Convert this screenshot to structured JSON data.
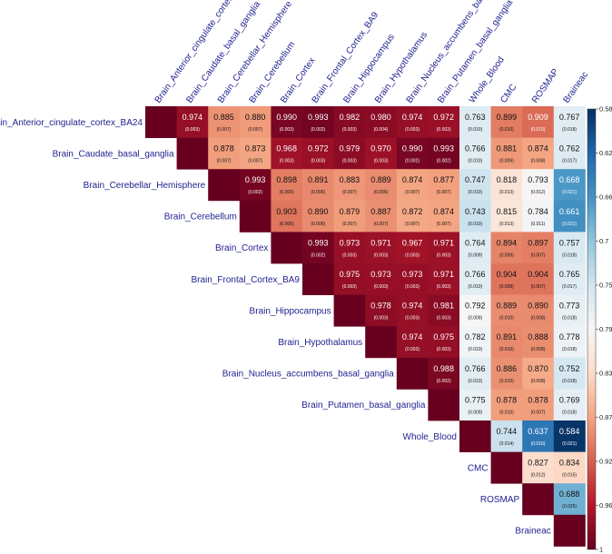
{
  "chart_data": {
    "type": "heatmap",
    "variables": [
      "Brain_Anterior_cingulate_cortex_BA24",
      "Brain_Caudate_basal_ganglia",
      "Brain_Cerebellar_Hemisphere",
      "Brain_Cerebellum",
      "Brain_Cortex",
      "Brain_Frontal_Cortex_BA9",
      "Brain_Hippocampus",
      "Brain_Hypothalamus",
      "Brain_Nucleus_accumbens_basal_ganglia",
      "Brain_Putamen_basal_ganglia",
      "Whole_Blood",
      "CMC",
      "ROSMAP",
      "Braineac"
    ],
    "values": [
      [
        null,
        0.974,
        0.885,
        0.88,
        0.99,
        0.993,
        0.982,
        0.98,
        0.974,
        0.972,
        0.763,
        0.899,
        0.909,
        0.767
      ],
      [
        null,
        null,
        0.878,
        0.873,
        0.968,
        0.972,
        0.979,
        0.97,
        0.99,
        0.993,
        0.766,
        0.881,
        0.874,
        0.762
      ],
      [
        null,
        null,
        null,
        0.993,
        0.898,
        0.891,
        0.883,
        0.889,
        0.874,
        0.877,
        0.747,
        0.818,
        0.793,
        0.668
      ],
      [
        null,
        null,
        null,
        null,
        0.903,
        0.89,
        0.879,
        0.887,
        0.872,
        0.874,
        0.743,
        0.815,
        0.784,
        0.661
      ],
      [
        null,
        null,
        null,
        null,
        null,
        0.993,
        0.973,
        0.971,
        0.967,
        0.971,
        0.764,
        0.894,
        0.897,
        0.757
      ],
      [
        null,
        null,
        null,
        null,
        null,
        null,
        0.975,
        0.973,
        0.973,
        0.971,
        0.766,
        0.904,
        0.904,
        0.765
      ],
      [
        null,
        null,
        null,
        null,
        null,
        null,
        null,
        0.978,
        0.974,
        0.981,
        0.792,
        0.889,
        0.89,
        0.773
      ],
      [
        null,
        null,
        null,
        null,
        null,
        null,
        null,
        null,
        0.974,
        0.975,
        0.782,
        0.891,
        0.888,
        0.778
      ],
      [
        null,
        null,
        null,
        null,
        null,
        null,
        null,
        null,
        null,
        0.988,
        0.766,
        0.886,
        0.87,
        0.752
      ],
      [
        null,
        null,
        null,
        null,
        null,
        null,
        null,
        null,
        null,
        null,
        0.775,
        0.878,
        0.878,
        0.769
      ],
      [
        null,
        null,
        null,
        null,
        null,
        null,
        null,
        null,
        null,
        null,
        null,
        0.744,
        0.637,
        0.584
      ],
      [
        null,
        null,
        null,
        null,
        null,
        null,
        null,
        null,
        null,
        null,
        null,
        null,
        0.827,
        0.834
      ],
      [
        null,
        null,
        null,
        null,
        null,
        null,
        null,
        null,
        null,
        null,
        null,
        null,
        null,
        0.688
      ],
      [
        null,
        null,
        null,
        null,
        null,
        null,
        null,
        null,
        null,
        null,
        null,
        null,
        null,
        null
      ]
    ],
    "standard_errors": [
      [
        null,
        "(0.003)",
        "(0.007)",
        "(0.007)",
        "(0.003)",
        "(0.002)",
        "(0.003)",
        "(0.004)",
        "(0.003)",
        "(0.003)",
        "(0.010)",
        "(0.010)",
        "(0.010)",
        "(0.018)"
      ],
      [
        null,
        null,
        "(0.007)",
        "(0.007)",
        "(0.003)",
        "(0.003)",
        "(0.003)",
        "(0.003)",
        "(0.002)",
        "(0.002)",
        "(0.010)",
        "(0.009)",
        "(0.008)",
        "(0.017)"
      ],
      [
        null,
        null,
        null,
        "(0.002)",
        "(0.006)",
        "(0.006)",
        "(0.007)",
        "(0.006)",
        "(0.007)",
        "(0.007)",
        "(0.010)",
        "(0.013)",
        "(0.012)",
        "(0.021)"
      ],
      [
        null,
        null,
        null,
        null,
        "(0.006)",
        "(0.006)",
        "(0.007)",
        "(0.007)",
        "(0.007)",
        "(0.007)",
        "(0.010)",
        "(0.013)",
        "(0.011)",
        "(0.021)"
      ],
      [
        null,
        null,
        null,
        null,
        null,
        "(0.002)",
        "(0.003)",
        "(0.003)",
        "(0.003)",
        "(0.003)",
        "(0.009)",
        "(0.009)",
        "(0.007)",
        "(0.018)"
      ],
      [
        null,
        null,
        null,
        null,
        null,
        null,
        "(0.003)",
        "(0.003)",
        "(0.003)",
        "(0.003)",
        "(0.010)",
        "(0.008)",
        "(0.007)",
        "(0.017)"
      ],
      [
        null,
        null,
        null,
        null,
        null,
        null,
        null,
        "(0.003)",
        "(0.003)",
        "(0.003)",
        "(0.009)",
        "(0.010)",
        "(0.008)",
        "(0.018)"
      ],
      [
        null,
        null,
        null,
        null,
        null,
        null,
        null,
        null,
        "(0.003)",
        "(0.003)",
        "(0.010)",
        "(0.010)",
        "(0.008)",
        "(0.018)"
      ],
      [
        null,
        null,
        null,
        null,
        null,
        null,
        null,
        null,
        null,
        "(0.002)",
        "(0.010)",
        "(0.010)",
        "(0.008)",
        "(0.018)"
      ],
      [
        null,
        null,
        null,
        null,
        null,
        null,
        null,
        null,
        null,
        null,
        "(0.009)",
        "(0.010)",
        "(0.007)",
        "(0.018)"
      ],
      [
        null,
        null,
        null,
        null,
        null,
        null,
        null,
        null,
        null,
        null,
        null,
        "(0.014)",
        "(0.016)",
        "(0.021)"
      ],
      [
        null,
        null,
        null,
        null,
        null,
        null,
        null,
        null,
        null,
        null,
        null,
        null,
        "(0.012)",
        "(0.015)"
      ],
      [
        null,
        null,
        null,
        null,
        null,
        null,
        null,
        null,
        null,
        null,
        null,
        null,
        null,
        "(0.026)"
      ],
      [
        null,
        null,
        null,
        null,
        null,
        null,
        null,
        null,
        null,
        null,
        null,
        null,
        null,
        null
      ]
    ],
    "diagonal_color": "#67001f",
    "colorscale": {
      "range": [
        0.58,
        1
      ],
      "ticks": [
        "0.58",
        "0.62",
        "0.66",
        "0.7",
        "0.75",
        "0.79",
        "0.83",
        "0.87",
        "0.92",
        "0.96",
        "1"
      ],
      "colors": [
        "#053061",
        "#2166ac",
        "#4393c3",
        "#92c5de",
        "#d1e5f0",
        "#f7f7f7",
        "#fddbc7",
        "#f4a582",
        "#d6604d",
        "#b2182b",
        "#67001f"
      ]
    },
    "title": "",
    "xlabel": "",
    "ylabel": ""
  }
}
